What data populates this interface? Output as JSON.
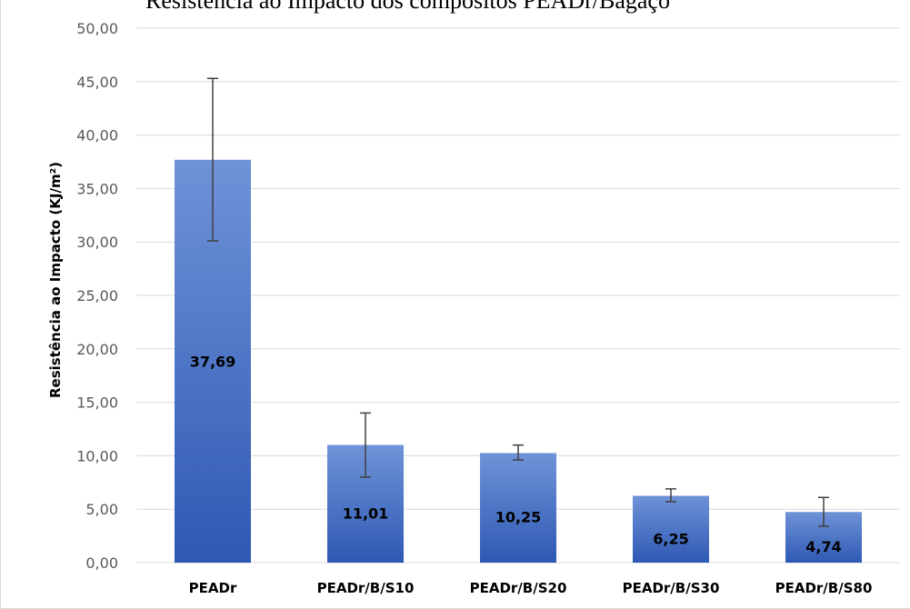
{
  "caption": "Resistência ao Impacto dos compósitos PEADr/Bagaço",
  "chart_data": {
    "type": "bar",
    "title": "",
    "xlabel": "",
    "ylabel": "Resistência ao Impacto (KJ/m²)",
    "ylim": [
      0,
      50
    ],
    "ytick_step": 5,
    "grid": true,
    "legend": "none",
    "categories": [
      "PEADr",
      "PEADr/B/S10",
      "PEADr/B/S20",
      "PEADr/B/S30",
      "PEADr/B/S80"
    ],
    "series": [
      {
        "values": [
          37.69,
          11.01,
          10.25,
          6.25,
          4.74
        ],
        "error_low": [
          30.1,
          8.0,
          9.6,
          5.7,
          3.4
        ],
        "error_high": [
          45.3,
          14.0,
          11.0,
          6.9,
          6.1
        ],
        "data_labels": [
          "37,69",
          "11,01",
          "10,25",
          "6,25",
          "4,74"
        ]
      }
    ],
    "colors": {
      "bar_top": "#6F93D8",
      "bar_bottom": "#2E59B3",
      "grid": "#d9d9d9",
      "error": "#404040"
    }
  }
}
